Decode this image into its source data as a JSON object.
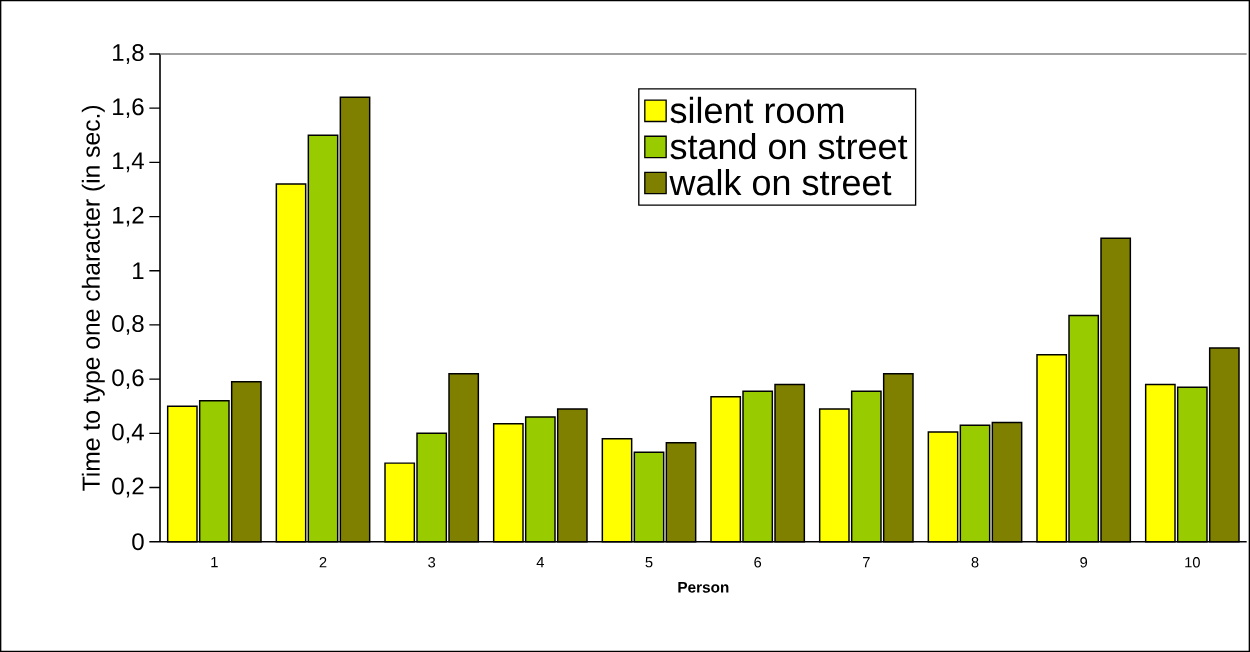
{
  "chart_data": {
    "type": "bar",
    "xlabel": "Person",
    "ylabel": "Time to type one character (in sec.)",
    "categories": [
      "1",
      "2",
      "3",
      "4",
      "5",
      "6",
      "7",
      "8",
      "9",
      "10"
    ],
    "series": [
      {
        "name": "silent room",
        "color": "#ffff00",
        "values": [
          0.5,
          1.32,
          0.29,
          0.435,
          0.38,
          0.535,
          0.49,
          0.405,
          0.69,
          0.58
        ]
      },
      {
        "name": "stand on street",
        "color": "#99cc00",
        "values": [
          0.52,
          1.5,
          0.4,
          0.46,
          0.33,
          0.555,
          0.555,
          0.43,
          0.835,
          0.57
        ]
      },
      {
        "name": "walk on street",
        "color": "#808000",
        "values": [
          0.59,
          1.64,
          0.62,
          0.49,
          0.365,
          0.58,
          0.62,
          0.44,
          1.12,
          0.715
        ]
      }
    ],
    "ylim": [
      0,
      1.8
    ],
    "yticks": [
      0,
      {
        "value": 0.2,
        "label": "0,2"
      },
      {
        "value": 0.4,
        "label": "0,4"
      },
      {
        "value": 0.6,
        "label": "0,6"
      },
      {
        "value": 0.8,
        "label": "0,8"
      },
      1,
      {
        "value": 1.2,
        "label": "1,2"
      },
      {
        "value": 1.4,
        "label": "1,4"
      },
      {
        "value": 1.6,
        "label": "1,6"
      },
      {
        "value": 1.8,
        "label": "1,8"
      }
    ],
    "legend": "top right",
    "grid": false
  }
}
